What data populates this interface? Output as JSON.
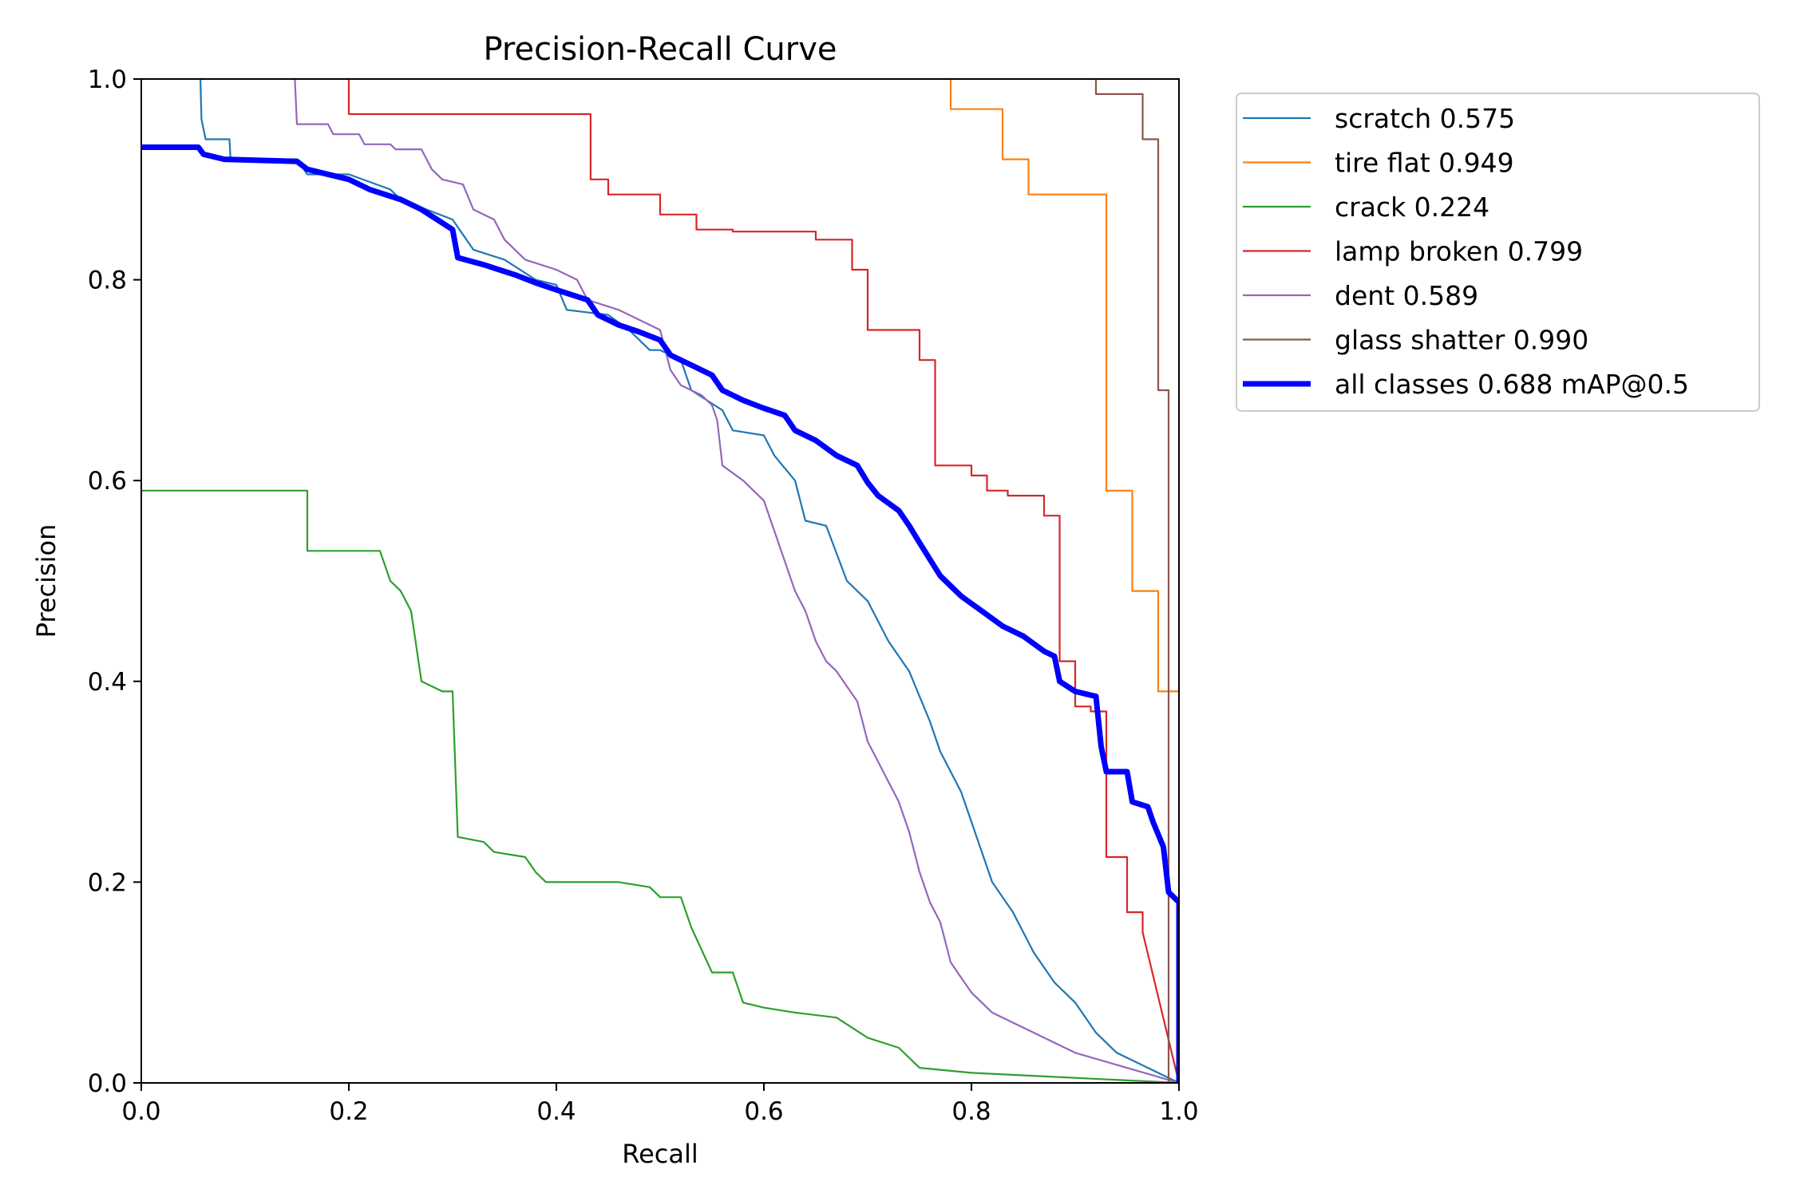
{
  "chart_data": {
    "type": "line",
    "title": "Precision-Recall Curve",
    "xlabel": "Recall",
    "ylabel": "Precision",
    "xlim": [
      0,
      1
    ],
    "ylim": [
      0,
      1
    ],
    "xticks": [
      "0.0",
      "0.2",
      "0.4",
      "0.6",
      "0.8",
      "1.0"
    ],
    "yticks": [
      "0.0",
      "0.2",
      "0.4",
      "0.6",
      "0.8",
      "1.0"
    ],
    "grid": false,
    "legend_position": "outside-top-right",
    "series": [
      {
        "name": "scratch 0.575",
        "color": "#1f77b4",
        "width": "thin",
        "points": [
          [
            0.057,
            1.0
          ],
          [
            0.058,
            0.96
          ],
          [
            0.062,
            0.94
          ],
          [
            0.085,
            0.94
          ],
          [
            0.086,
            0.92
          ],
          [
            0.15,
            0.92
          ],
          [
            0.16,
            0.905
          ],
          [
            0.2,
            0.905
          ],
          [
            0.24,
            0.89
          ],
          [
            0.25,
            0.88
          ],
          [
            0.3,
            0.86
          ],
          [
            0.32,
            0.83
          ],
          [
            0.35,
            0.82
          ],
          [
            0.38,
            0.8
          ],
          [
            0.4,
            0.795
          ],
          [
            0.41,
            0.77
          ],
          [
            0.45,
            0.765
          ],
          [
            0.47,
            0.75
          ],
          [
            0.49,
            0.73
          ],
          [
            0.5,
            0.73
          ],
          [
            0.52,
            0.72
          ],
          [
            0.53,
            0.69
          ],
          [
            0.56,
            0.67
          ],
          [
            0.57,
            0.65
          ],
          [
            0.6,
            0.645
          ],
          [
            0.61,
            0.625
          ],
          [
            0.63,
            0.6
          ],
          [
            0.64,
            0.56
          ],
          [
            0.66,
            0.555
          ],
          [
            0.68,
            0.5
          ],
          [
            0.7,
            0.48
          ],
          [
            0.72,
            0.44
          ],
          [
            0.74,
            0.41
          ],
          [
            0.76,
            0.36
          ],
          [
            0.77,
            0.33
          ],
          [
            0.79,
            0.29
          ],
          [
            0.8,
            0.26
          ],
          [
            0.82,
            0.2
          ],
          [
            0.84,
            0.17
          ],
          [
            0.86,
            0.13
          ],
          [
            0.88,
            0.1
          ],
          [
            0.9,
            0.08
          ],
          [
            0.92,
            0.05
          ],
          [
            0.94,
            0.03
          ],
          [
            1.0,
            0.0
          ]
        ]
      },
      {
        "name": "tire flat 0.949",
        "color": "#ff7f0e",
        "width": "thin",
        "points": [
          [
            0.78,
            1.0
          ],
          [
            0.78,
            0.97
          ],
          [
            0.83,
            0.97
          ],
          [
            0.83,
            0.92
          ],
          [
            0.855,
            0.92
          ],
          [
            0.855,
            0.885
          ],
          [
            0.93,
            0.885
          ],
          [
            0.93,
            0.59
          ],
          [
            0.955,
            0.59
          ],
          [
            0.955,
            0.49
          ],
          [
            0.98,
            0.49
          ],
          [
            0.98,
            0.39
          ],
          [
            1.0,
            0.39
          ],
          [
            1.0,
            0.0
          ]
        ]
      },
      {
        "name": "crack 0.224",
        "color": "#2ca02c",
        "width": "thin",
        "points": [
          [
            0.0,
            0.59
          ],
          [
            0.16,
            0.59
          ],
          [
            0.16,
            0.53
          ],
          [
            0.23,
            0.53
          ],
          [
            0.24,
            0.5
          ],
          [
            0.25,
            0.49
          ],
          [
            0.26,
            0.47
          ],
          [
            0.27,
            0.4
          ],
          [
            0.29,
            0.39
          ],
          [
            0.3,
            0.39
          ],
          [
            0.305,
            0.245
          ],
          [
            0.33,
            0.24
          ],
          [
            0.34,
            0.23
          ],
          [
            0.37,
            0.225
          ],
          [
            0.38,
            0.21
          ],
          [
            0.39,
            0.2
          ],
          [
            0.46,
            0.2
          ],
          [
            0.49,
            0.195
          ],
          [
            0.5,
            0.185
          ],
          [
            0.52,
            0.185
          ],
          [
            0.53,
            0.155
          ],
          [
            0.55,
            0.11
          ],
          [
            0.57,
            0.11
          ],
          [
            0.58,
            0.08
          ],
          [
            0.6,
            0.075
          ],
          [
            0.63,
            0.07
          ],
          [
            0.67,
            0.065
          ],
          [
            0.7,
            0.045
          ],
          [
            0.73,
            0.035
          ],
          [
            0.75,
            0.015
          ],
          [
            0.8,
            0.01
          ],
          [
            1.0,
            0.0
          ]
        ]
      },
      {
        "name": "lamp broken 0.799",
        "color": "#d62728",
        "width": "thin",
        "points": [
          [
            0.2,
            1.0
          ],
          [
            0.2,
            0.965
          ],
          [
            0.433,
            0.965
          ],
          [
            0.433,
            0.9
          ],
          [
            0.45,
            0.9
          ],
          [
            0.45,
            0.885
          ],
          [
            0.5,
            0.885
          ],
          [
            0.5,
            0.865
          ],
          [
            0.535,
            0.865
          ],
          [
            0.535,
            0.85
          ],
          [
            0.57,
            0.85
          ],
          [
            0.57,
            0.848
          ],
          [
            0.65,
            0.848
          ],
          [
            0.65,
            0.84
          ],
          [
            0.685,
            0.84
          ],
          [
            0.685,
            0.81
          ],
          [
            0.7,
            0.81
          ],
          [
            0.7,
            0.75
          ],
          [
            0.75,
            0.75
          ],
          [
            0.75,
            0.72
          ],
          [
            0.765,
            0.72
          ],
          [
            0.765,
            0.615
          ],
          [
            0.8,
            0.615
          ],
          [
            0.8,
            0.605
          ],
          [
            0.815,
            0.605
          ],
          [
            0.815,
            0.59
          ],
          [
            0.835,
            0.59
          ],
          [
            0.835,
            0.585
          ],
          [
            0.87,
            0.585
          ],
          [
            0.87,
            0.565
          ],
          [
            0.885,
            0.565
          ],
          [
            0.885,
            0.42
          ],
          [
            0.9,
            0.42
          ],
          [
            0.9,
            0.375
          ],
          [
            0.915,
            0.375
          ],
          [
            0.915,
            0.37
          ],
          [
            0.93,
            0.37
          ],
          [
            0.93,
            0.225
          ],
          [
            0.95,
            0.225
          ],
          [
            0.95,
            0.17
          ],
          [
            0.965,
            0.17
          ],
          [
            0.965,
            0.15
          ],
          [
            1.0,
            0.0
          ]
        ]
      },
      {
        "name": "dent 0.589",
        "color": "#9467bd",
        "width": "thin",
        "points": [
          [
            0.148,
            1.0
          ],
          [
            0.15,
            0.955
          ],
          [
            0.18,
            0.955
          ],
          [
            0.185,
            0.945
          ],
          [
            0.21,
            0.945
          ],
          [
            0.215,
            0.935
          ],
          [
            0.24,
            0.935
          ],
          [
            0.245,
            0.93
          ],
          [
            0.27,
            0.93
          ],
          [
            0.28,
            0.91
          ],
          [
            0.29,
            0.9
          ],
          [
            0.31,
            0.895
          ],
          [
            0.32,
            0.87
          ],
          [
            0.34,
            0.86
          ],
          [
            0.35,
            0.84
          ],
          [
            0.37,
            0.82
          ],
          [
            0.4,
            0.81
          ],
          [
            0.42,
            0.8
          ],
          [
            0.43,
            0.78
          ],
          [
            0.46,
            0.77
          ],
          [
            0.48,
            0.76
          ],
          [
            0.5,
            0.75
          ],
          [
            0.51,
            0.71
          ],
          [
            0.52,
            0.695
          ],
          [
            0.54,
            0.685
          ],
          [
            0.55,
            0.675
          ],
          [
            0.555,
            0.66
          ],
          [
            0.56,
            0.615
          ],
          [
            0.58,
            0.6
          ],
          [
            0.6,
            0.58
          ],
          [
            0.61,
            0.55
          ],
          [
            0.62,
            0.52
          ],
          [
            0.63,
            0.49
          ],
          [
            0.64,
            0.47
          ],
          [
            0.65,
            0.44
          ],
          [
            0.66,
            0.42
          ],
          [
            0.67,
            0.41
          ],
          [
            0.68,
            0.395
          ],
          [
            0.69,
            0.38
          ],
          [
            0.7,
            0.34
          ],
          [
            0.71,
            0.32
          ],
          [
            0.72,
            0.3
          ],
          [
            0.73,
            0.28
          ],
          [
            0.74,
            0.25
          ],
          [
            0.75,
            0.21
          ],
          [
            0.76,
            0.18
          ],
          [
            0.77,
            0.16
          ],
          [
            0.78,
            0.12
          ],
          [
            0.8,
            0.09
          ],
          [
            0.82,
            0.07
          ],
          [
            0.85,
            0.055
          ],
          [
            0.87,
            0.045
          ],
          [
            0.9,
            0.03
          ],
          [
            1.0,
            0.0
          ]
        ]
      },
      {
        "name": "glass shatter 0.990",
        "color": "#8c564b",
        "width": "thin",
        "points": [
          [
            0.92,
            1.0
          ],
          [
            0.92,
            0.985
          ],
          [
            0.965,
            0.985
          ],
          [
            0.965,
            0.94
          ],
          [
            0.98,
            0.94
          ],
          [
            0.98,
            0.69
          ],
          [
            0.99,
            0.69
          ],
          [
            0.99,
            0.0
          ]
        ]
      },
      {
        "name": "all classes 0.688 mAP@0.5",
        "color": "#0000ff",
        "width": "thick",
        "points": [
          [
            0.0,
            0.932
          ],
          [
            0.055,
            0.932
          ],
          [
            0.06,
            0.925
          ],
          [
            0.08,
            0.92
          ],
          [
            0.15,
            0.918
          ],
          [
            0.16,
            0.91
          ],
          [
            0.2,
            0.9
          ],
          [
            0.22,
            0.89
          ],
          [
            0.25,
            0.88
          ],
          [
            0.27,
            0.87
          ],
          [
            0.3,
            0.85
          ],
          [
            0.305,
            0.822
          ],
          [
            0.33,
            0.815
          ],
          [
            0.36,
            0.805
          ],
          [
            0.38,
            0.797
          ],
          [
            0.4,
            0.79
          ],
          [
            0.43,
            0.78
          ],
          [
            0.44,
            0.765
          ],
          [
            0.46,
            0.755
          ],
          [
            0.48,
            0.748
          ],
          [
            0.5,
            0.74
          ],
          [
            0.51,
            0.725
          ],
          [
            0.53,
            0.715
          ],
          [
            0.55,
            0.705
          ],
          [
            0.56,
            0.69
          ],
          [
            0.58,
            0.68
          ],
          [
            0.6,
            0.672
          ],
          [
            0.62,
            0.665
          ],
          [
            0.63,
            0.65
          ],
          [
            0.65,
            0.64
          ],
          [
            0.67,
            0.625
          ],
          [
            0.69,
            0.615
          ],
          [
            0.7,
            0.598
          ],
          [
            0.71,
            0.585
          ],
          [
            0.73,
            0.57
          ],
          [
            0.74,
            0.555
          ],
          [
            0.75,
            0.538
          ],
          [
            0.77,
            0.505
          ],
          [
            0.79,
            0.485
          ],
          [
            0.81,
            0.47
          ],
          [
            0.83,
            0.455
          ],
          [
            0.85,
            0.445
          ],
          [
            0.87,
            0.43
          ],
          [
            0.88,
            0.425
          ],
          [
            0.885,
            0.4
          ],
          [
            0.9,
            0.39
          ],
          [
            0.92,
            0.385
          ],
          [
            0.925,
            0.335
          ],
          [
            0.93,
            0.31
          ],
          [
            0.95,
            0.31
          ],
          [
            0.955,
            0.28
          ],
          [
            0.97,
            0.275
          ],
          [
            0.975,
            0.26
          ],
          [
            0.985,
            0.235
          ],
          [
            0.99,
            0.19
          ],
          [
            1.0,
            0.18
          ],
          [
            1.0,
            0.0
          ]
        ]
      }
    ]
  }
}
